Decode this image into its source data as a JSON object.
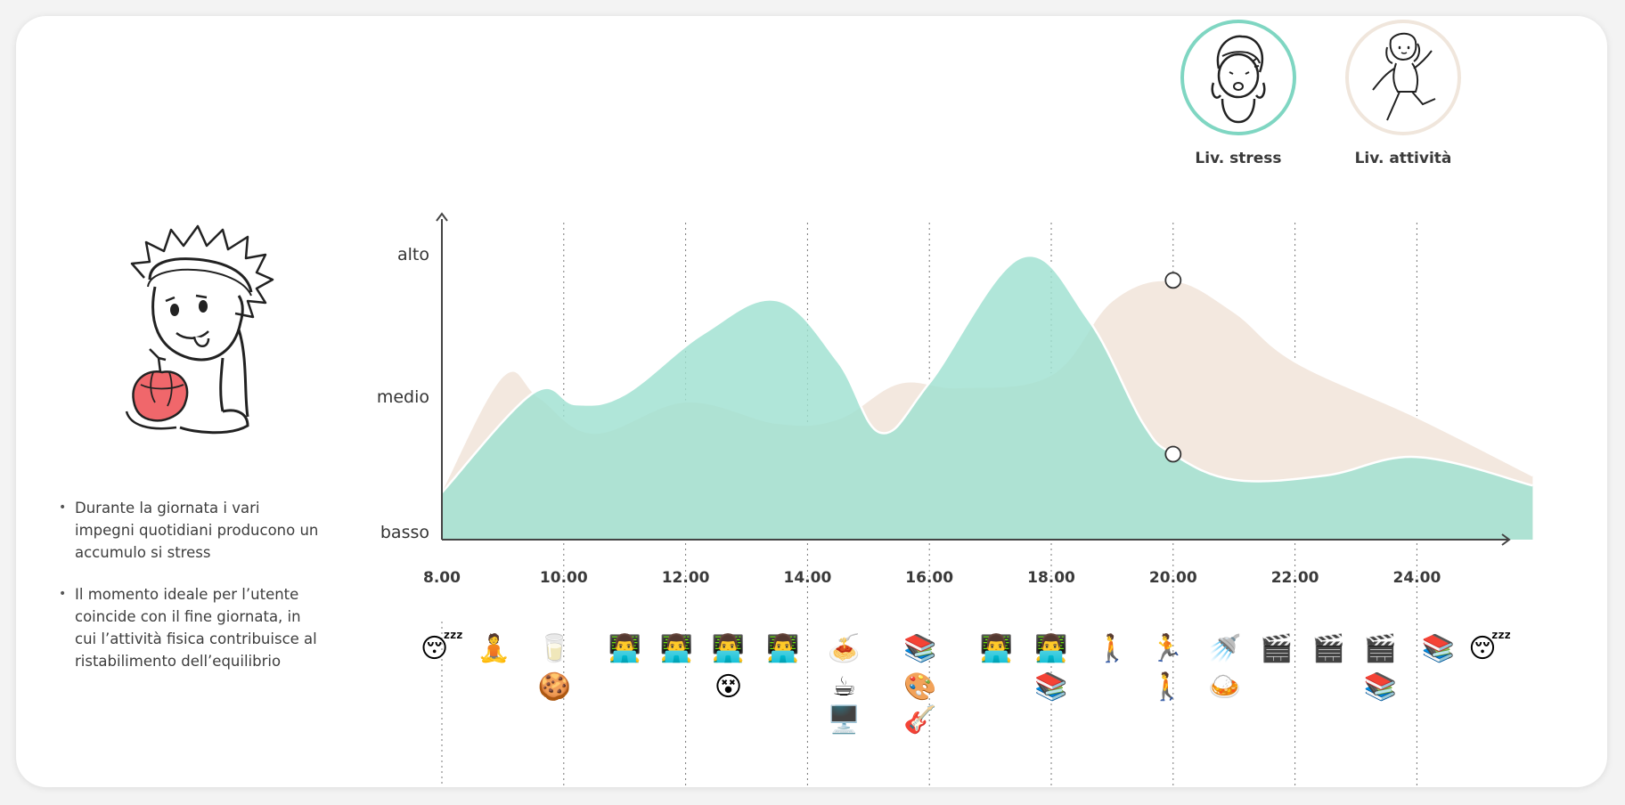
{
  "legend": [
    {
      "label": "Liv. stress",
      "color": "#7fd6c2",
      "icon": "stressed-person-icon"
    },
    {
      "label": "Liv.  attività",
      "color": "#f0e6dc",
      "icon": "active-person-icon"
    }
  ],
  "bullets": [
    "Durante la giornata i vari impegni quotidiani producono un accumulo si stress",
    "Il momento ideale per l’utente coincide con il fine giornata, in cui l’attività fisica contribuisce al ristabilimento dell’equilibrio"
  ],
  "chart_data": {
    "type": "area",
    "ylabels": [
      "alto",
      "medio",
      "basso"
    ],
    "xticks": [
      "8.00",
      "10.00",
      "12.00",
      "14.00",
      "16.00",
      "18.00",
      "20.00",
      "22.00",
      "24.00"
    ],
    "x_tick_hours": [
      8,
      10,
      12,
      14,
      16,
      18,
      20,
      22,
      24
    ],
    "ylim": [
      0,
      2
    ],
    "grid": "vertical dotted",
    "series": [
      {
        "name": "Liv.  attività",
        "color": "#f3e8df",
        "x": [
          8,
          9,
          9.6,
          10.5,
          12,
          13.5,
          14.5,
          15.5,
          16.5,
          18,
          19,
          20,
          21,
          22,
          24,
          25.9
        ],
        "y": [
          0.35,
          1.15,
          1.0,
          0.75,
          0.97,
          0.82,
          0.85,
          1.1,
          1.07,
          1.16,
          1.68,
          1.82,
          1.6,
          1.25,
          0.86,
          0.45
        ]
      },
      {
        "name": "Liv. stress",
        "color": "#9fe0d1",
        "x": [
          8,
          9.5,
          10.2,
          11,
          12.3,
          13.5,
          14.5,
          15.2,
          16,
          17.5,
          18.6,
          19.5,
          20,
          21,
          22.5,
          24,
          25.9
        ],
        "y": [
          0.33,
          1.03,
          0.95,
          1.02,
          1.45,
          1.68,
          1.25,
          0.75,
          1.1,
          1.98,
          1.55,
          0.82,
          0.6,
          0.42,
          0.45,
          0.58,
          0.38
        ]
      }
    ],
    "markers": [
      {
        "x": 20,
        "y": 1.82
      },
      {
        "x": 20,
        "y": 0.6
      }
    ]
  },
  "activities": [
    {
      "x": 8.0,
      "row": 0,
      "emoji": "😴",
      "name": "sleep-emoji"
    },
    {
      "x": 8.85,
      "row": 0,
      "emoji": "🧘",
      "name": "meditation-emoji"
    },
    {
      "x": 9.85,
      "row": 0,
      "emoji": "🥛",
      "name": "milk-glass-emoji"
    },
    {
      "x": 9.85,
      "row": 1,
      "emoji": "🍪",
      "name": "cookie-emoji"
    },
    {
      "x": 11.0,
      "row": 0,
      "emoji": "👨‍💻",
      "name": "laptop-worker-emoji"
    },
    {
      "x": 11.85,
      "row": 0,
      "emoji": "👨‍💻",
      "name": "laptop-worker-emoji"
    },
    {
      "x": 12.7,
      "row": 0,
      "emoji": "👨‍💻",
      "name": "laptop-worker-emoji"
    },
    {
      "x": 12.7,
      "row": 1,
      "emoji": "😵",
      "name": "dizzy-face-emoji"
    },
    {
      "x": 13.6,
      "row": 0,
      "emoji": "👨‍💻",
      "name": "laptop-worker-emoji"
    },
    {
      "x": 14.6,
      "row": 0,
      "emoji": "🍝",
      "name": "spaghetti-emoji"
    },
    {
      "x": 14.6,
      "row": 1,
      "emoji": "☕",
      "name": "coffee-emoji"
    },
    {
      "x": 14.6,
      "row": 2,
      "emoji": "🖥️",
      "name": "desktop-computer-emoji"
    },
    {
      "x": 15.85,
      "row": 0,
      "emoji": "📚",
      "name": "books-emoji"
    },
    {
      "x": 15.85,
      "row": 1,
      "emoji": "🎨",
      "name": "palette-emoji"
    },
    {
      "x": 15.85,
      "row": 2,
      "emoji": "🎸",
      "name": "guitar-emoji"
    },
    {
      "x": 17.1,
      "row": 0,
      "emoji": "👨‍💻",
      "name": "laptop-worker-emoji"
    },
    {
      "x": 18.0,
      "row": 0,
      "emoji": "👨‍💻",
      "name": "laptop-worker-emoji"
    },
    {
      "x": 18.0,
      "row": 1,
      "emoji": "📚",
      "name": "books-emoji"
    },
    {
      "x": 19.0,
      "row": 0,
      "emoji": "🚶",
      "name": "walking-person-emoji"
    },
    {
      "x": 19.9,
      "row": 0,
      "emoji": "🏃",
      "name": "running-person-emoji"
    },
    {
      "x": 19.9,
      "row": 1,
      "emoji": "🚶",
      "name": "walking-person-emoji"
    },
    {
      "x": 20.85,
      "row": 0,
      "emoji": "🚿",
      "name": "shower-emoji"
    },
    {
      "x": 20.85,
      "row": 1,
      "emoji": "🍛",
      "name": "curry-plate-emoji"
    },
    {
      "x": 21.7,
      "row": 0,
      "emoji": "🎬",
      "name": "clapper-board-emoji"
    },
    {
      "x": 22.55,
      "row": 0,
      "emoji": "🎬",
      "name": "clapper-board-emoji"
    },
    {
      "x": 23.4,
      "row": 0,
      "emoji": "🎬",
      "name": "clapper-board-emoji"
    },
    {
      "x": 23.4,
      "row": 1,
      "emoji": "📚",
      "name": "books-emoji"
    },
    {
      "x": 24.35,
      "row": 0,
      "emoji": "📚",
      "name": "books-emoji"
    },
    {
      "x": 25.2,
      "row": 0,
      "emoji": "😴",
      "name": "sleep-emoji"
    }
  ]
}
